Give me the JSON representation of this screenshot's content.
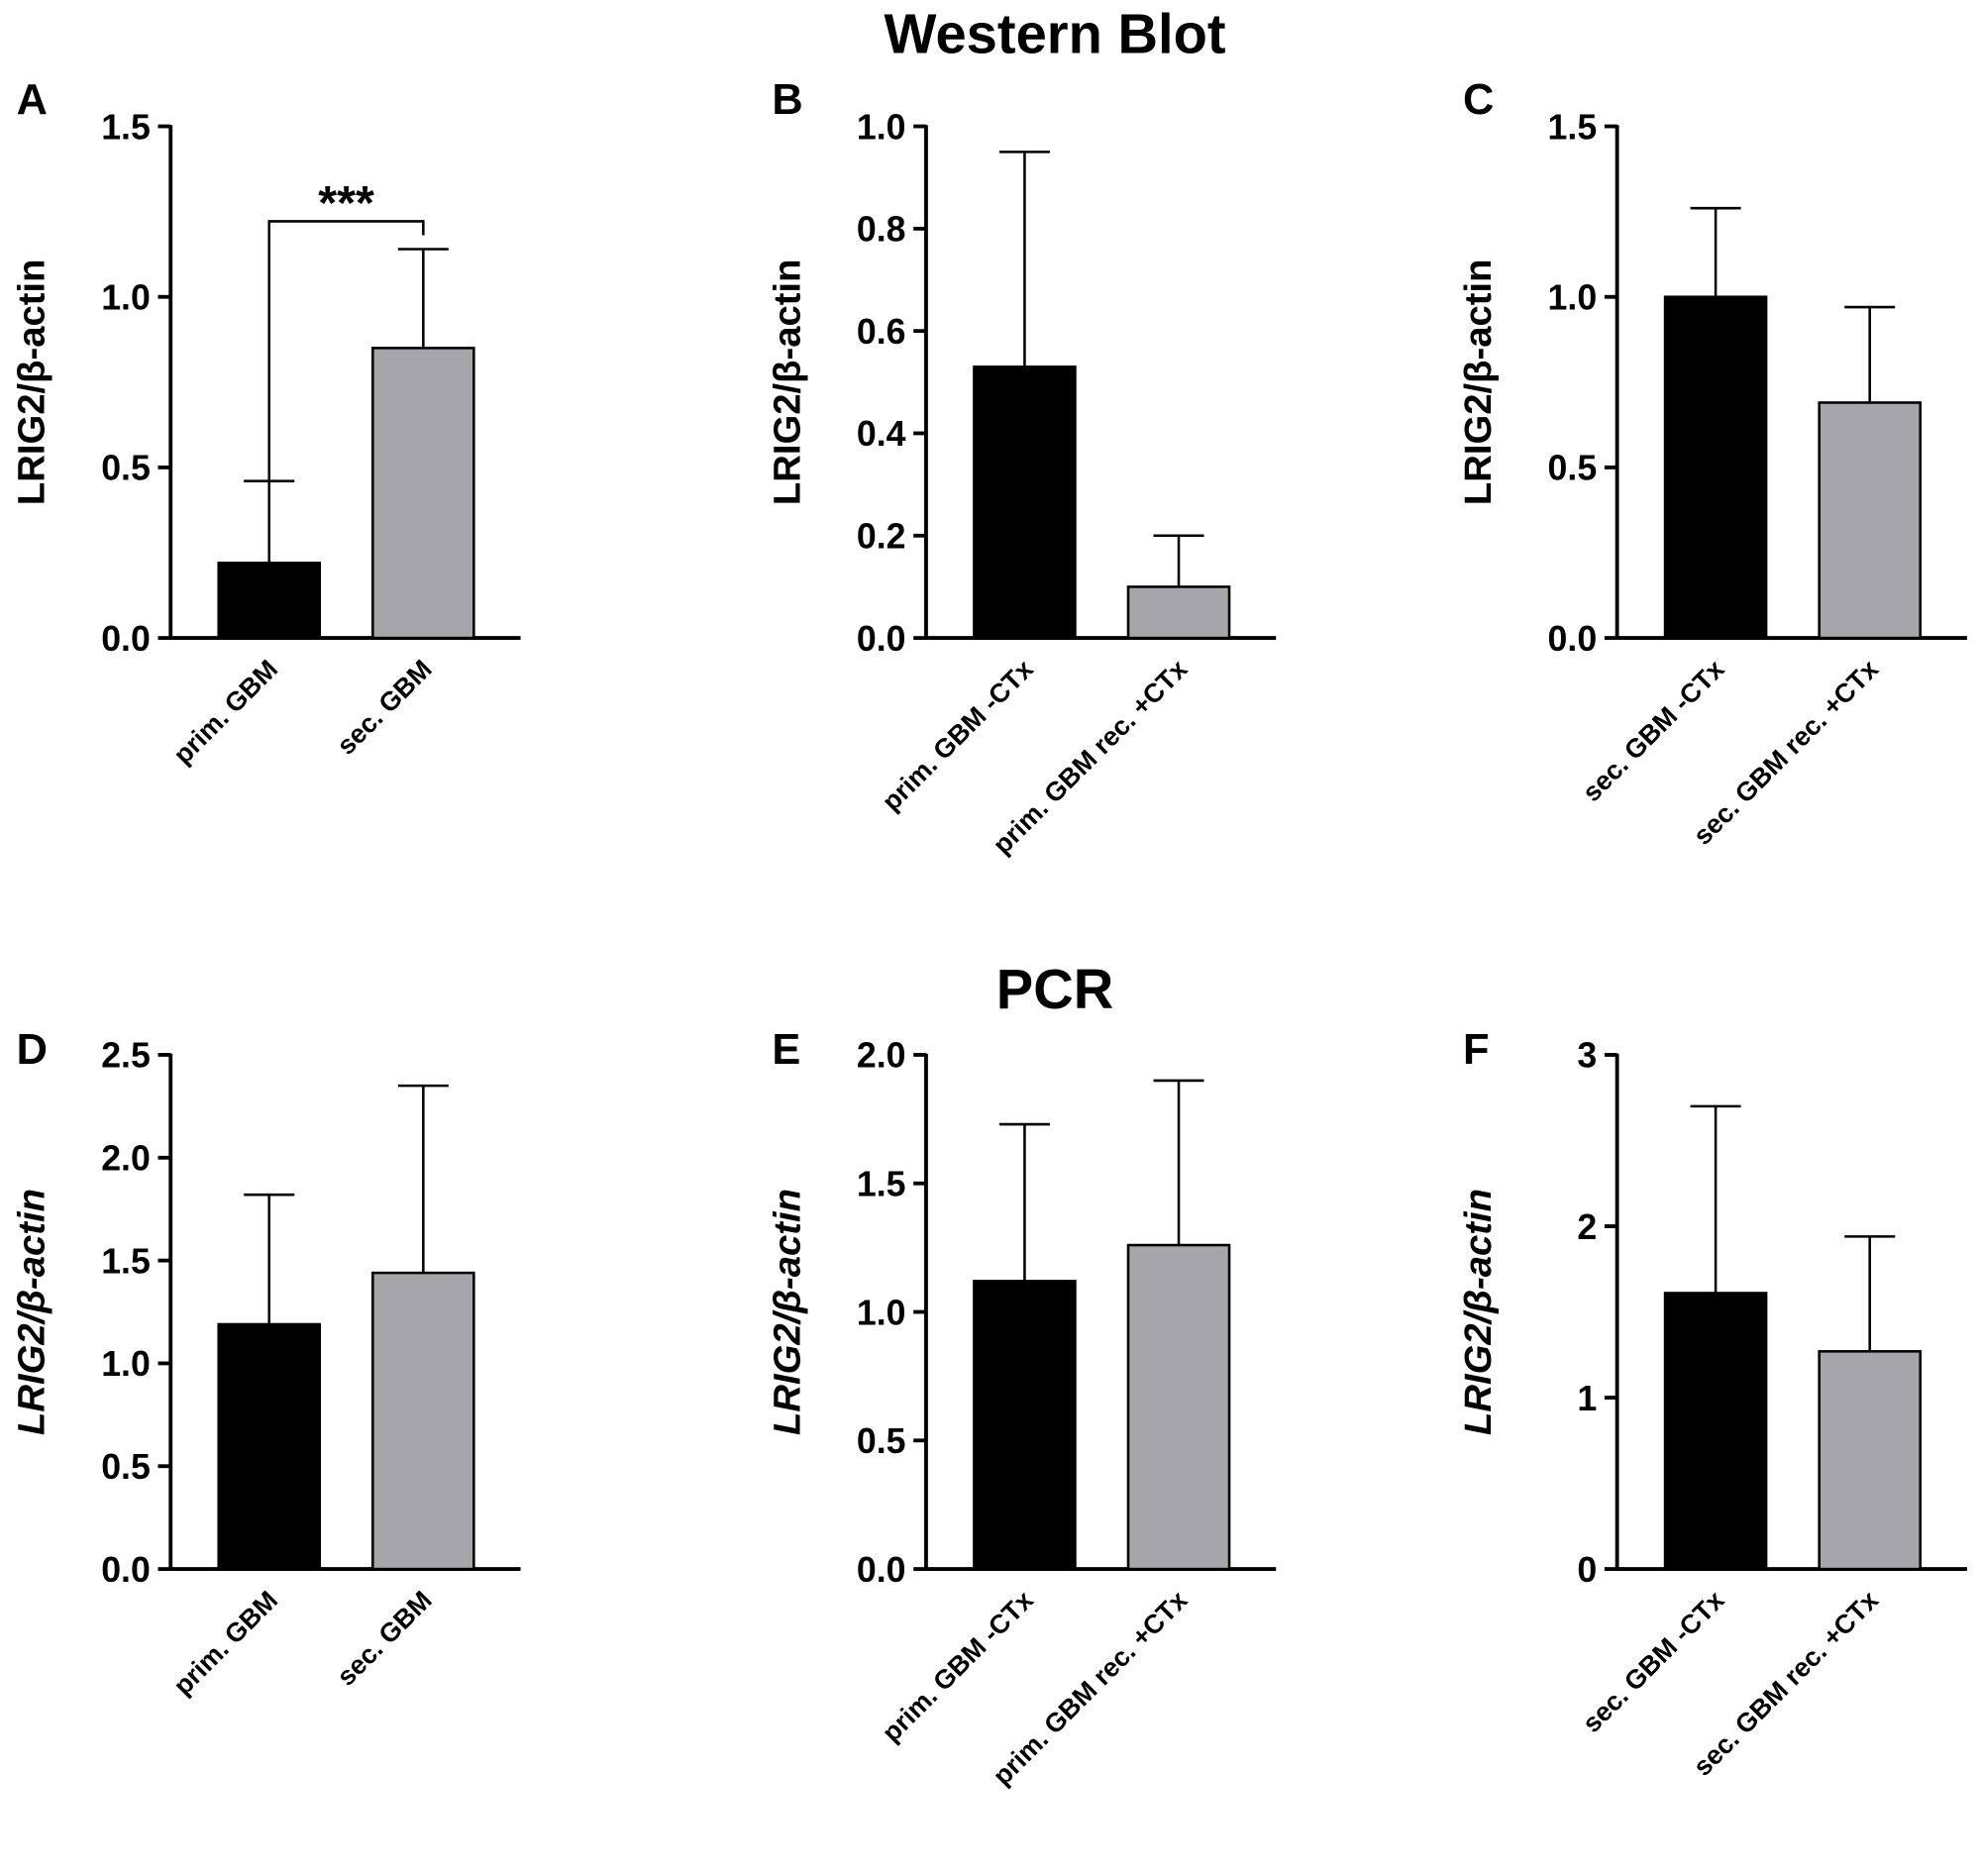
{
  "sections": [
    "Western Blot",
    "PCR"
  ],
  "chart_data": [
    {
      "type": "bar",
      "panel": "A",
      "ylabel": "LRIG2/β-actin",
      "ylabel_italic": false,
      "categories": [
        "prim. GBM",
        "sec. GBM"
      ],
      "values": [
        0.22,
        0.85
      ],
      "errors": [
        0.24,
        0.29
      ],
      "colors": [
        "#000000",
        "#a6a6aa"
      ],
      "ylim": [
        0,
        1.5
      ],
      "yticks": [
        {
          "value": 0,
          "label": "0.0"
        },
        0.5,
        {
          "value": 1,
          "label": "1.0"
        },
        1.5
      ],
      "annotation": "***"
    },
    {
      "type": "bar",
      "panel": "B",
      "ylabel": "LRIG2/β-actin",
      "ylabel_italic": false,
      "categories": [
        "prim. GBM -CTx",
        "prim. GBM rec. +CTx"
      ],
      "values": [
        0.53,
        0.1
      ],
      "errors": [
        0.42,
        0.1
      ],
      "colors": [
        "#000000",
        "#a6a6aa"
      ],
      "ylim": [
        0,
        1
      ],
      "yticks": [
        {
          "value": 0,
          "label": "0.0"
        },
        0.2,
        0.4,
        0.6,
        0.8,
        {
          "value": 1,
          "label": "1.0"
        }
      ]
    },
    {
      "type": "bar",
      "panel": "C",
      "ylabel": "LRIG2/β-actin",
      "ylabel_italic": false,
      "categories": [
        "sec. GBM -CTx",
        "sec. GBM rec. +CTx"
      ],
      "values": [
        1.0,
        0.69
      ],
      "errors": [
        0.26,
        0.28
      ],
      "colors": [
        "#000000",
        "#a6a6aa"
      ],
      "ylim": [
        0,
        1.5
      ],
      "yticks": [
        {
          "value": 0,
          "label": "0.0"
        },
        0.5,
        {
          "value": 1,
          "label": "1.0"
        },
        1.5
      ]
    },
    {
      "type": "bar",
      "panel": "D",
      "ylabel": "LRIG2/β-actin",
      "ylabel_italic": true,
      "categories": [
        "prim. GBM",
        "sec. GBM"
      ],
      "values": [
        1.19,
        1.44
      ],
      "errors": [
        0.63,
        0.91
      ],
      "colors": [
        "#000000",
        "#a6a6aa"
      ],
      "ylim": [
        0,
        2.5
      ],
      "yticks": [
        {
          "value": 0,
          "label": "0.0"
        },
        0.5,
        {
          "value": 1,
          "label": "1.0"
        },
        1.5,
        {
          "value": 2,
          "label": "2.0"
        },
        2.5
      ]
    },
    {
      "type": "bar",
      "panel": "E",
      "ylabel": "LRIG2/β-actin",
      "ylabel_italic": true,
      "categories": [
        "prim. GBM -CTx",
        "prim. GBM rec. +CTx"
      ],
      "values": [
        1.12,
        1.26
      ],
      "errors": [
        0.61,
        0.64
      ],
      "colors": [
        "#000000",
        "#a6a6aa"
      ],
      "ylim": [
        0,
        2
      ],
      "yticks": [
        {
          "value": 0,
          "label": "0.0"
        },
        0.5,
        {
          "value": 1,
          "label": "1.0"
        },
        1.5,
        {
          "value": 2,
          "label": "2.0"
        }
      ]
    },
    {
      "type": "bar",
      "panel": "F",
      "ylabel": "LRIG2/β-actin",
      "ylabel_italic": true,
      "categories": [
        "sec. GBM -CTx",
        "sec. GBM rec. +CTx"
      ],
      "values": [
        1.61,
        1.27
      ],
      "errors": [
        1.09,
        0.67
      ],
      "colors": [
        "#000000",
        "#a6a6aa"
      ],
      "ylim": [
        0,
        3
      ],
      "yticks": [
        0,
        1,
        2,
        3
      ]
    }
  ]
}
